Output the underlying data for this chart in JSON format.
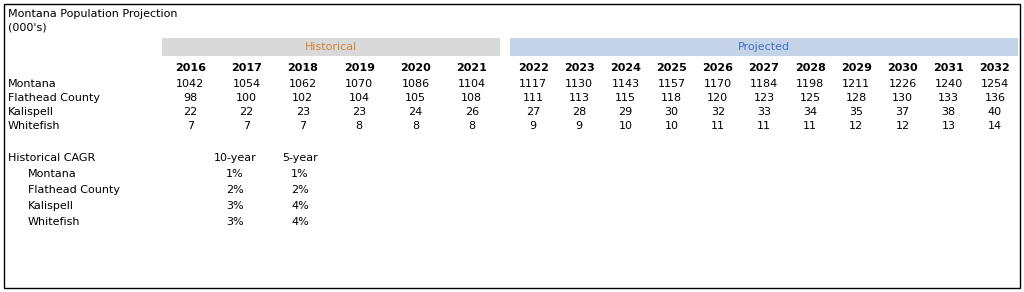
{
  "title_line1": "Montana Population Projection",
  "title_line2": "(000's)",
  "historical_label": "Historical",
  "projected_label": "Projected",
  "historical_color": "#d9d9d9",
  "projected_color": "#c5d3e8",
  "historical_text_color": "#c8873a",
  "projected_text_color": "#4472c4",
  "background_color": "#ffffff",
  "border_color": "#000000",
  "hist_years": [
    "2016",
    "2017",
    "2018",
    "2019",
    "2020",
    "2021"
  ],
  "proj_years": [
    "2022",
    "2023",
    "2024",
    "2025",
    "2026",
    "2027",
    "2028",
    "2029",
    "2030",
    "2031",
    "2032"
  ],
  "row_labels": [
    "Montana",
    "Flathead County",
    "Kalispell",
    "Whitefish"
  ],
  "hist_data": [
    [
      1042,
      1054,
      1062,
      1070,
      1086,
      1104
    ],
    [
      98,
      100,
      102,
      104,
      105,
      108
    ],
    [
      22,
      22,
      23,
      23,
      24,
      26
    ],
    [
      7,
      7,
      7,
      8,
      8,
      8
    ]
  ],
  "proj_data": [
    [
      1117,
      1130,
      1143,
      1157,
      1170,
      1184,
      1198,
      1211,
      1226,
      1240,
      1254
    ],
    [
      111,
      113,
      115,
      118,
      120,
      123,
      125,
      128,
      130,
      133,
      136
    ],
    [
      27,
      28,
      29,
      30,
      32,
      33,
      34,
      35,
      37,
      38,
      40
    ],
    [
      9,
      9,
      10,
      10,
      11,
      11,
      11,
      12,
      12,
      13,
      14
    ]
  ],
  "cagr_label": "Historical CAGR",
  "cagr_headers": [
    "10-year",
    "5-year"
  ],
  "cagr_rows": [
    "Montana",
    "Flathead County",
    "Kalispell",
    "Whitefish"
  ],
  "cagr_10yr": [
    "1%",
    "2%",
    "3%",
    "3%"
  ],
  "cagr_5yr": [
    "1%",
    "2%",
    "4%",
    "4%"
  ],
  "font_size": 8.0
}
